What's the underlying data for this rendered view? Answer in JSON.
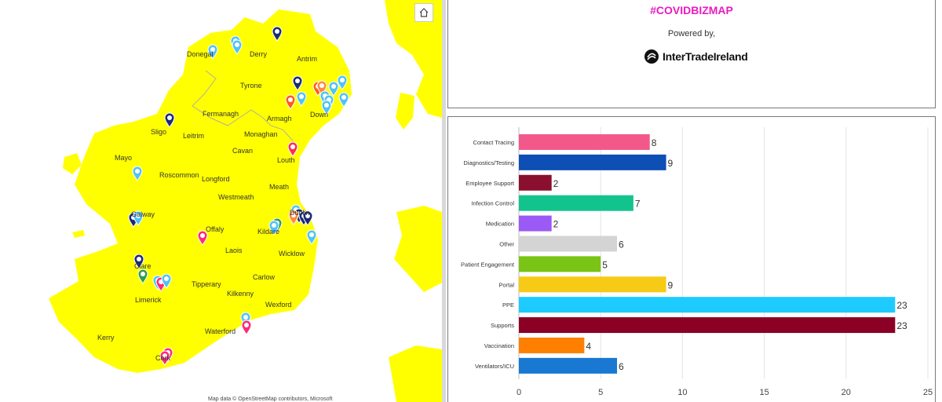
{
  "map": {
    "counties": [
      {
        "name": "Donegal"
      },
      {
        "name": "Derry"
      },
      {
        "name": "Antrim"
      },
      {
        "name": "Tyrone"
      },
      {
        "name": "Fermanagh"
      },
      {
        "name": "Armagh"
      },
      {
        "name": "Down"
      },
      {
        "name": "Monaghan"
      },
      {
        "name": "Sligo"
      },
      {
        "name": "Leitrim"
      },
      {
        "name": "Cavan"
      },
      {
        "name": "Louth"
      },
      {
        "name": "Mayo"
      },
      {
        "name": "Roscommon"
      },
      {
        "name": "Longford"
      },
      {
        "name": "Meath"
      },
      {
        "name": "Westmeath"
      },
      {
        "name": "Galway"
      },
      {
        "name": "Offaly"
      },
      {
        "name": "Kildare"
      },
      {
        "name": "Dublin"
      },
      {
        "name": "Laois"
      },
      {
        "name": "Wicklow"
      },
      {
        "name": "Clare"
      },
      {
        "name": "Carlow"
      },
      {
        "name": "Tipperary"
      },
      {
        "name": "Kilkenny"
      },
      {
        "name": "Limerick"
      },
      {
        "name": "Wexford"
      },
      {
        "name": "Waterford"
      },
      {
        "name": "Kerry"
      },
      {
        "name": "Cork"
      }
    ],
    "home_icon": "home-icon",
    "attribution": "Map data © OpenStreetMap contributors, Microsoft",
    "colors": {
      "land": "#ffff00",
      "sea": "#ffffff",
      "border": "#b0b0a0"
    }
  },
  "header": {
    "hashtag": "#COVIDBIZMAP",
    "powered_by": "Powered by,",
    "logo_text": "InterTradeIreland",
    "logo_icon": "intertradeireland-logo-icon"
  },
  "chart_data": {
    "type": "bar",
    "orientation": "horizontal",
    "categories": [
      "Contact Tracing",
      "Diagnostics/Testing",
      "Employee Support",
      "Infection Control",
      "Medication",
      "Other",
      "Patient Engagement",
      "Portal",
      "PPE",
      "Supports",
      "Vaccination",
      "Ventilators/ICU"
    ],
    "values": [
      8,
      9,
      2,
      7,
      2,
      6,
      5,
      9,
      23,
      23,
      4,
      6
    ],
    "colors": [
      "#f2598a",
      "#0d4fb4",
      "#8b0f2e",
      "#12c38d",
      "#9b59f5",
      "#d4d4d4",
      "#79c414",
      "#f7cb15",
      "#1ecbff",
      "#8b0024",
      "#ff8000",
      "#1878d2"
    ],
    "xticks": [
      0,
      5,
      10,
      15,
      20,
      25
    ],
    "xlim": [
      0,
      25
    ],
    "grid": true
  }
}
